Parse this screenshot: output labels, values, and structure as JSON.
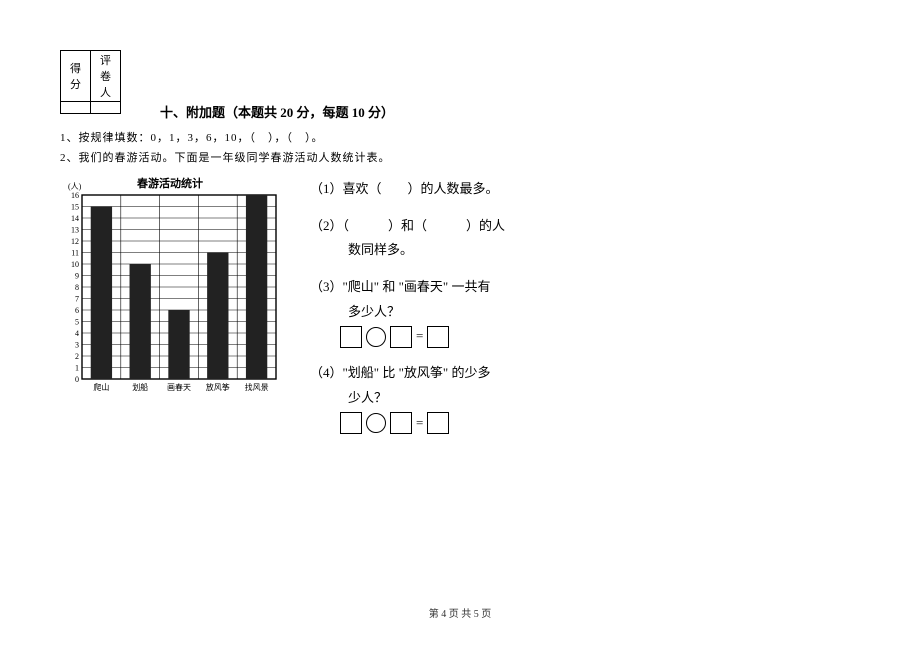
{
  "score_table": {
    "left": "得分",
    "right": "评卷人"
  },
  "section_title": "十、附加题（本题共 20 分，每题 10 分）",
  "q1": "1、按规律填数：0，1，3，6，10，（　），（　）。",
  "q2": "2、我们的春游活动。下面是一年级同学春游活动人数统计表。",
  "chart": {
    "title": "春游活动统计",
    "y_label": "(人)",
    "y_max": 16,
    "y_min": 0,
    "y_step": 1,
    "categories": [
      "爬山",
      "划船",
      "画春天",
      "放风筝",
      "找风景"
    ],
    "values": [
      15,
      10,
      6,
      11,
      16
    ],
    "bar_color": "#222222",
    "grid_color": "#000000",
    "background_color": "#ffffff",
    "axis_fontsize": 8,
    "cat_fontsize": 8
  },
  "questions": {
    "a": "（1）喜欢（　　）的人数最多。",
    "b1": "（2）（　　　）和（　　　）的人",
    "b2": "数同样多。",
    "c1": "（3）\"爬山\" 和 \"画春天\" 一共有",
    "c2": "多少人？",
    "d1": "（4）\"划船\" 比 \"放风筝\" 的少多",
    "d2": "少人？",
    "eq_text": "="
  },
  "footer": "第 4 页 共 5 页"
}
